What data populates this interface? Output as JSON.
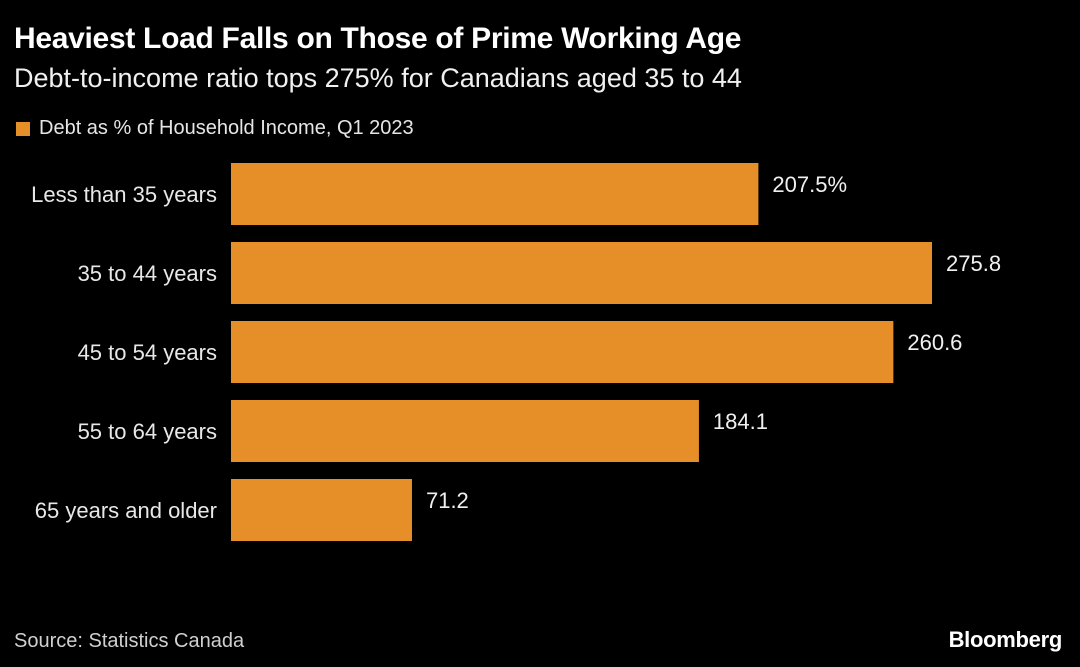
{
  "header": {
    "title": "Heaviest Load Falls on Those of Prime Working Age",
    "subtitle": "Debt-to-income ratio tops 275% for Canadians aged 35 to 44"
  },
  "footer": {
    "source": "Source: Statistics Canada",
    "brand": "Bloomberg"
  },
  "chart_data": {
    "type": "bar",
    "orientation": "horizontal",
    "title": "Heaviest Load Falls on Those of Prime Working Age",
    "subtitle": "Debt-to-income ratio tops 275% for Canadians aged 35 to 44",
    "categories": [
      "Less than 35 years",
      "35 to 44 years",
      "45 to 54 years",
      "55 to 64 years",
      "65 years and older"
    ],
    "series": [
      {
        "name": "Debt as % of Household Income, Q1 2023",
        "values": [
          207.5,
          275.8,
          260.6,
          184.1,
          71.2
        ],
        "value_labels": [
          "207.5%",
          "275.8",
          "260.6",
          "184.1",
          "71.2"
        ],
        "color": "#e68f29"
      }
    ],
    "xlim": [
      0,
      275.8
    ],
    "grid": false,
    "legend": "top-left",
    "xlabel": "",
    "ylabel": ""
  }
}
